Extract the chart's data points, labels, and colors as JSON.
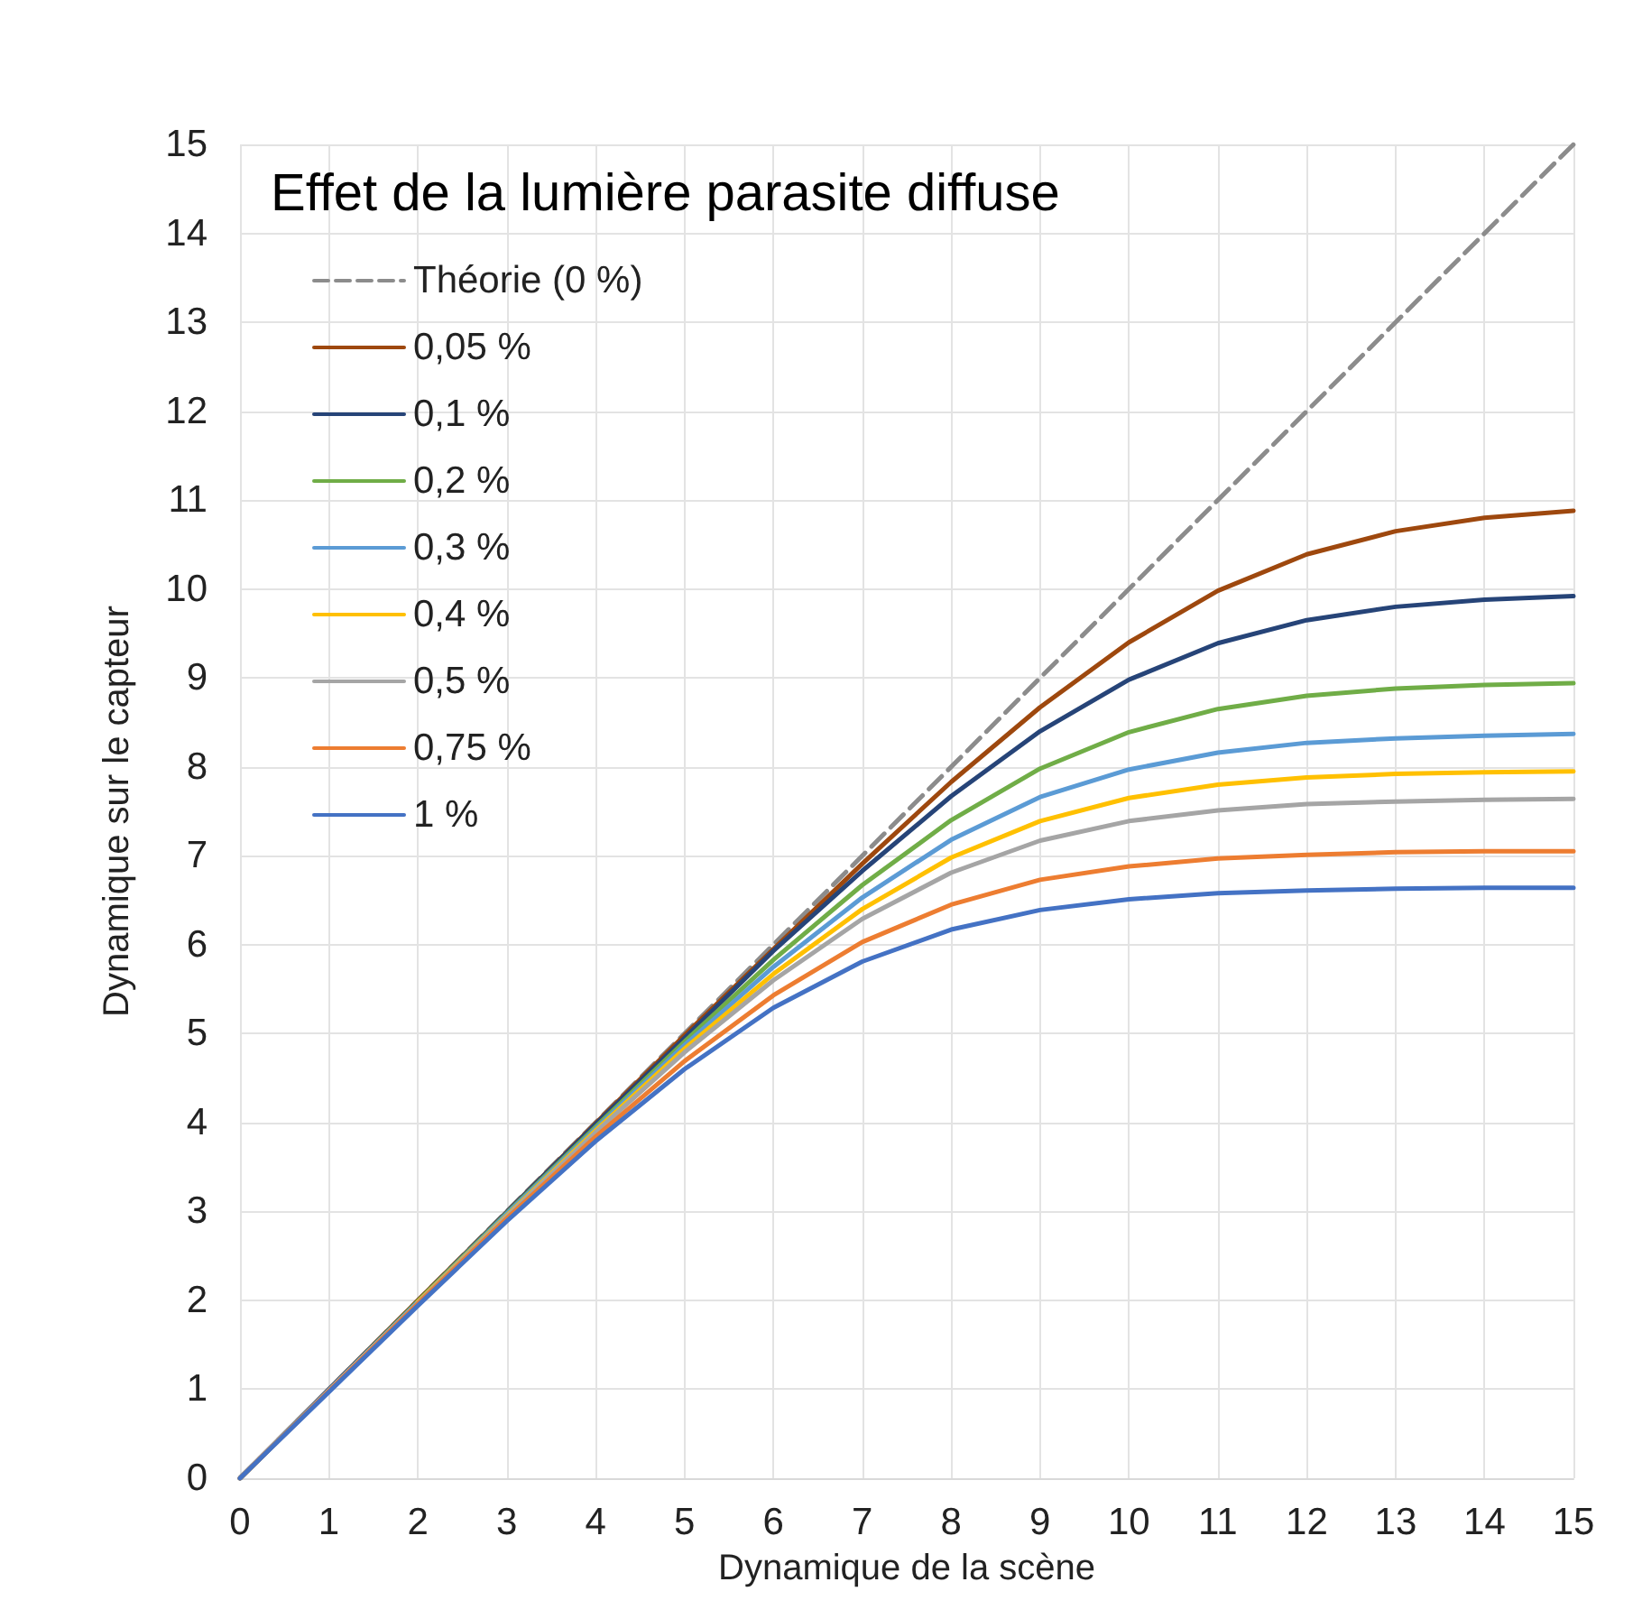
{
  "chart_data": {
    "type": "line",
    "title": "Effet de la lumière parasite diffuse",
    "xlabel": "Dynamique de la scène",
    "ylabel": "Dynamique sur le capteur",
    "x": [
      0,
      1,
      2,
      3,
      4,
      5,
      6,
      7,
      8,
      9,
      10,
      11,
      12,
      13,
      14,
      15
    ],
    "series": [
      {
        "name": "Théorie (0 %)",
        "color": "#8c8c8c",
        "line_style": "dashed",
        "x": [
          0,
          15
        ],
        "values": [
          0,
          15
        ]
      },
      {
        "name": "0,05 %",
        "color": "#9e480e",
        "values": [
          0,
          1.0,
          2.0,
          2.99,
          3.99,
          4.98,
          5.95,
          6.91,
          7.83,
          8.67,
          9.4,
          9.98,
          10.39,
          10.65,
          10.8,
          10.88
        ]
      },
      {
        "name": "0,1 %",
        "color": "#264478",
        "values": [
          0,
          1.0,
          1.99,
          2.99,
          3.98,
          4.95,
          5.93,
          6.83,
          7.67,
          8.4,
          8.98,
          9.39,
          9.65,
          9.8,
          9.88,
          9.92
        ]
      },
      {
        "name": "0,2 %",
        "color": "#70ad47",
        "values": [
          0,
          0.99,
          1.99,
          2.98,
          3.95,
          4.91,
          5.83,
          6.67,
          7.4,
          7.98,
          8.39,
          8.65,
          8.8,
          8.88,
          8.92,
          8.94
        ]
      },
      {
        "name": "0,3 %",
        "color": "#5b9bd5",
        "values": [
          0,
          0.99,
          1.98,
          2.97,
          3.93,
          4.87,
          5.75,
          6.53,
          7.18,
          7.66,
          7.97,
          8.16,
          8.27,
          8.32,
          8.35,
          8.37
        ]
      },
      {
        "name": "0,4 %",
        "color": "#ffc000",
        "values": [
          null,
          null,
          1.98,
          2.95,
          3.91,
          4.83,
          5.67,
          6.4,
          6.98,
          7.39,
          7.65,
          7.8,
          7.88,
          7.92,
          7.94,
          7.95
        ]
      },
      {
        "name": "0,5 %",
        "color": "#a5a5a5",
        "values": [
          0,
          0.99,
          1.97,
          2.94,
          3.89,
          4.79,
          5.6,
          6.29,
          6.81,
          7.17,
          7.39,
          7.51,
          7.58,
          7.61,
          7.63,
          7.64
        ]
      },
      {
        "name": "0,75 %",
        "color": "#ed7d31",
        "values": [
          0,
          0.98,
          1.96,
          2.92,
          3.84,
          4.69,
          5.43,
          6.03,
          6.45,
          6.73,
          6.88,
          6.97,
          7.01,
          7.04,
          7.05,
          7.05
        ]
      },
      {
        "name": "1 %",
        "color": "#4472c4",
        "values": [
          0,
          0.97,
          1.94,
          2.89,
          3.79,
          4.6,
          5.29,
          5.81,
          6.17,
          6.39,
          6.51,
          6.58,
          6.61,
          6.63,
          6.64,
          6.64
        ]
      }
    ],
    "xlim": [
      0,
      15
    ],
    "xticks": [
      0,
      1,
      2,
      3,
      4,
      5,
      6,
      7,
      8,
      9,
      10,
      11,
      12,
      13,
      14,
      15
    ],
    "ylim": [
      0,
      15
    ],
    "yticks": [
      0,
      1,
      2,
      3,
      4,
      5,
      6,
      7,
      8,
      9,
      10,
      11,
      12,
      13,
      14,
      15
    ],
    "grid": true,
    "legend": "top left",
    "line_style": "solid"
  }
}
